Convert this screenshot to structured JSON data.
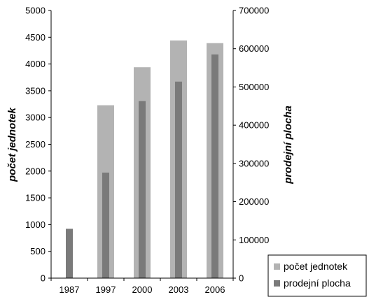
{
  "chart_data": {
    "type": "bar",
    "categories": [
      "1987",
      "1997",
      "2000",
      "2003",
      "2006"
    ],
    "series": [
      {
        "name": "počet jednotek",
        "axis": "left",
        "values": [
          0,
          3230,
          3940,
          4440,
          4390
        ],
        "color": "#b3b3b3"
      },
      {
        "name": "prodejní plocha",
        "axis": "right",
        "values": [
          129000,
          276000,
          463000,
          514000,
          585000
        ],
        "color": "#7a7a7a"
      }
    ],
    "ylabel_left": "počet jednotek",
    "ylabel_right": "prodejní plocha",
    "ylim_left": [
      0,
      5000
    ],
    "ylim_right": [
      0,
      700000
    ],
    "yticks_left": [
      "0",
      "500",
      "1000",
      "1500",
      "2000",
      "2500",
      "3000",
      "3500",
      "4000",
      "4500",
      "5000"
    ],
    "yticks_right": [
      "0",
      "100000",
      "200000",
      "300000",
      "400000",
      "500000",
      "600000",
      "700000"
    ],
    "legend_placement": "bottom-right",
    "grid": false
  }
}
